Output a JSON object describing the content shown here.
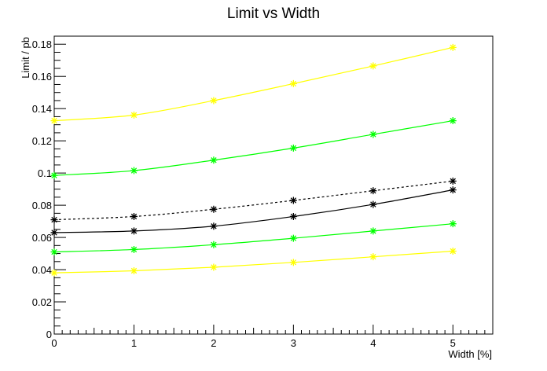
{
  "chart_data": {
    "type": "line",
    "title": "Limit vs Width",
    "xlabel": "Width [%]",
    "ylabel": "Limit / pb",
    "xlim": [
      0,
      5.5
    ],
    "ylim": [
      0,
      0.185
    ],
    "x_ticks": [
      "0",
      "1",
      "2",
      "3",
      "4",
      "5"
    ],
    "y_ticks": [
      "0",
      "0.02",
      "0.04",
      "0.06",
      "0.08",
      "0.1",
      "0.12",
      "0.14",
      "0.16",
      "0.18"
    ],
    "grid": false,
    "x": [
      0,
      1,
      2,
      3,
      4,
      5
    ],
    "series": [
      {
        "values": [
          0.1325,
          0.136,
          0.145,
          0.1555,
          0.1665,
          0.178
        ],
        "color": "#ffff00",
        "dashed": false,
        "marker_color": "#ffff00"
      },
      {
        "values": [
          0.0985,
          0.1015,
          0.108,
          0.1155,
          0.124,
          0.1325
        ],
        "color": "#00ff00",
        "dashed": false,
        "marker_color": "#00ff00"
      },
      {
        "values": [
          0.071,
          0.073,
          0.0775,
          0.083,
          0.089,
          0.095
        ],
        "color": "#000000",
        "dashed": true,
        "marker_color": "#000000"
      },
      {
        "values": [
          0.063,
          0.064,
          0.067,
          0.073,
          0.0805,
          0.0895
        ],
        "color": "#000000",
        "dashed": false,
        "marker_color": "#000000"
      },
      {
        "values": [
          0.051,
          0.0525,
          0.0555,
          0.0595,
          0.064,
          0.0685
        ],
        "color": "#00ff00",
        "dashed": false,
        "marker_color": "#00ff00"
      },
      {
        "values": [
          0.038,
          0.0393,
          0.0415,
          0.0445,
          0.048,
          0.0515
        ],
        "color": "#ffff00",
        "dashed": false,
        "marker_color": "#ffff00"
      }
    ]
  }
}
